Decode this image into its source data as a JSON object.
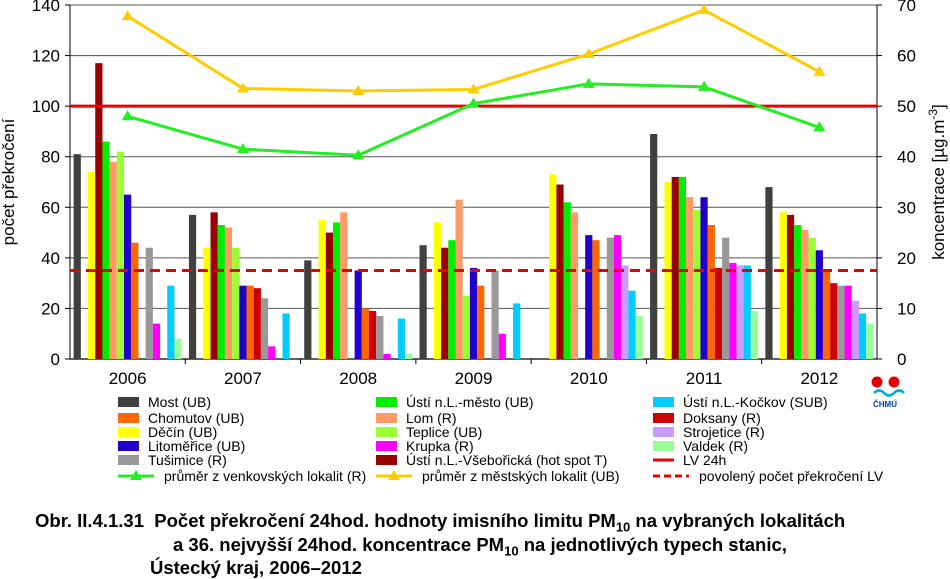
{
  "chart_data": {
    "type": "bar",
    "categories": [
      "2006",
      "2007",
      "2008",
      "2009",
      "2010",
      "2011",
      "2012"
    ],
    "ylabel_left": "počet překročení",
    "ylabel_right": "koncentrace [µg.m-3]",
    "ylim_left": [
      0,
      140
    ],
    "ylim_right": [
      0,
      70
    ],
    "yticks_left": [
      "0",
      "20",
      "40",
      "60",
      "80",
      "100",
      "120",
      "140"
    ],
    "yticks_right": [
      "0",
      "10",
      "20",
      "30",
      "40",
      "50",
      "60",
      "70"
    ],
    "grid": true,
    "legend_position": "bottom",
    "series": [
      {
        "name": "Most (UB)",
        "color": "#404040",
        "values": [
          81,
          57,
          39,
          45,
          null,
          89,
          68
        ]
      },
      {
        "name": "Chomutov (UB)",
        "color": "#ff9900",
        "values": [
          null,
          null,
          null,
          null,
          null,
          null,
          null
        ]
      },
      {
        "name": "Děčín (UB)",
        "color": "#ffff00",
        "values": [
          74,
          44,
          55,
          54,
          73,
          70,
          58
        ]
      },
      {
        "name": "Ústí n.L.-Všebořická (hot spot T)",
        "color": "#990000",
        "values": [
          117,
          58,
          50,
          44,
          69,
          72,
          57
        ]
      },
      {
        "name": "Ústí n.L.-město (UB)",
        "color": "#00ee00",
        "values": [
          86,
          53,
          54,
          47,
          62,
          72,
          53
        ]
      },
      {
        "name": "Lom (R)",
        "color": "#ff9966",
        "values": [
          78,
          52,
          58,
          63,
          58,
          64,
          51
        ]
      },
      {
        "name": "Teplice (UB)",
        "color": "#99ff33",
        "values": [
          82,
          44,
          null,
          25,
          null,
          59,
          48
        ]
      },
      {
        "name": "Litoměřice (UB)",
        "color": "#2200cc",
        "values": [
          65,
          29,
          35,
          36,
          49,
          64,
          43
        ]
      },
      {
        "name": "Chomutov (UB)",
        "color": "#ff6600",
        "values": [
          46,
          29,
          20,
          29,
          47,
          53,
          35
        ]
      },
      {
        "name": "Doksany (R)",
        "color": "#cc0000",
        "values": [
          null,
          28,
          19,
          null,
          null,
          36,
          30
        ]
      },
      {
        "name": "Tušimice (R)",
        "color": "#999999",
        "values": [
          44,
          24,
          17,
          35,
          48,
          48,
          29
        ]
      },
      {
        "name": "Krupka (R)",
        "color": "#ff00ff",
        "values": [
          14,
          5,
          2,
          10,
          49,
          38,
          29
        ]
      },
      {
        "name": "Strojetice (R)",
        "color": "#cc99ff",
        "values": [
          null,
          null,
          null,
          null,
          37,
          37,
          23
        ]
      },
      {
        "name": "Ústí n.L.-Kočkov (SUB)",
        "color": "#00ccff",
        "values": [
          29,
          18,
          16,
          22,
          27,
          37,
          18
        ]
      },
      {
        "name": "Valdek (R)",
        "color": "#99ff99",
        "values": [
          8,
          null,
          2,
          null,
          17,
          19,
          14
        ]
      }
    ],
    "line_series": [
      {
        "name": "průměr z venkovských lokalit (R)",
        "color": "#22ee22",
        "axis": "right",
        "values": [
          48,
          41.5,
          40.3,
          50.5,
          54.4,
          53.8,
          45.8
        ]
      },
      {
        "name": "průměr z městských lokalit (UB)",
        "color": "#ffcc00",
        "axis": "right",
        "values": [
          67.8,
          53.5,
          53,
          53.3,
          60.3,
          69,
          56.8
        ]
      }
    ],
    "reference_lines": [
      {
        "name": "LV 24h",
        "color": "#ee0000",
        "axis": "left",
        "value": 100,
        "style": "solid"
      },
      {
        "name": "povolený počet překročení LV",
        "color": "#ee0000",
        "axis": "left",
        "value": 35,
        "style": "dashed"
      }
    ],
    "legend": [
      {
        "label": "Most (UB)",
        "color": "#404040",
        "kind": "box"
      },
      {
        "label": "Chomutov (UB)",
        "color": "#ff6600",
        "kind": "box"
      },
      {
        "label": "Děčín (UB)",
        "color": "#ffff00",
        "kind": "box"
      },
      {
        "label": "Litoměřice (UB)",
        "color": "#2200cc",
        "kind": "box"
      },
      {
        "label": "Tušimice (R)",
        "color": "#999999",
        "kind": "box"
      },
      {
        "label": "Ústí n.L.-město (UB)",
        "color": "#00ee00",
        "kind": "box"
      },
      {
        "label": "Lom (R)",
        "color": "#ff9966",
        "kind": "box"
      },
      {
        "label": "Teplice (UB)",
        "color": "#99ff33",
        "kind": "box"
      },
      {
        "label": "Krupka (R)",
        "color": "#ff00ff",
        "kind": "box"
      },
      {
        "label": "Ústí n.L.-Všebořická (hot spot T)",
        "color": "#990000",
        "kind": "box"
      },
      {
        "label": "Ústí n.L.-Kočkov (SUB)",
        "color": "#00ccff",
        "kind": "box"
      },
      {
        "label": "Doksany (R)",
        "color": "#cc0000",
        "kind": "box"
      },
      {
        "label": "Strojetice (R)",
        "color": "#cc99ff",
        "kind": "box"
      },
      {
        "label": "Valdek (R)",
        "color": "#99ff99",
        "kind": "box"
      },
      {
        "label": "LV 24h",
        "color": "#ee0000",
        "kind": "line"
      },
      {
        "label": "průměr z venkovských lokalit (R)",
        "color": "#22ee22",
        "kind": "marker-line"
      },
      {
        "label": "průměr z městských lokalit  (UB)",
        "color": "#ffcc00",
        "kind": "marker-line"
      },
      {
        "label": "povolený počet překročení LV",
        "color": "#ee0000",
        "kind": "dashed-line"
      }
    ],
    "logo_text": "ČHMÚ"
  },
  "caption": {
    "number": "Obr. II.4.1.31",
    "line1_before": "Počet překročení 24hod. hodnoty imisního limitu PM",
    "line1_sub": "10",
    "line1_after": " na vybraných lokalitách",
    "line2_before": "a 36. nejvyšší 24hod. koncentrace PM",
    "line2_sub": "10",
    "line2_after": " na jednotlivých typech stanic,",
    "line3": "Ústecký kraj, 2006–2012"
  }
}
